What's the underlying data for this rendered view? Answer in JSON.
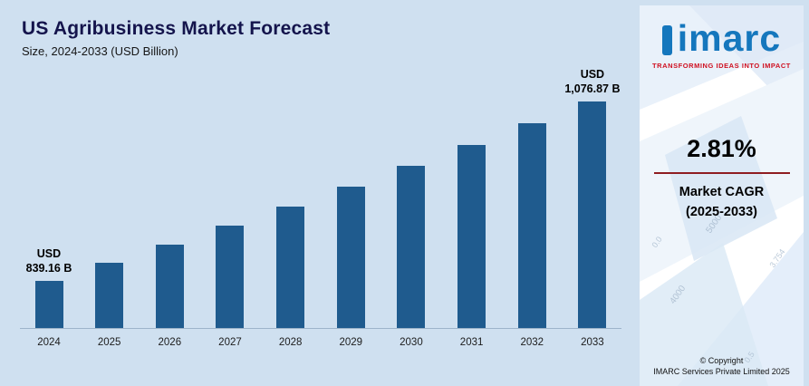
{
  "page": {
    "background_color": "#cfe0f0"
  },
  "chart": {
    "title": "US Agribusiness Market Forecast",
    "subtitle": "Size, 2024-2033 (USD Billion)"
  },
  "chart_data": {
    "type": "bar",
    "title": "US Agribusiness Market Forecast",
    "subtitle": "Size, 2024-2033 (USD Billion)",
    "unit": "USD Billion",
    "categories": [
      "2024",
      "2025",
      "2026",
      "2027",
      "2028",
      "2029",
      "2030",
      "2031",
      "2032",
      "2033"
    ],
    "values": [
      839.16,
      862.74,
      886.98,
      911.91,
      937.53,
      963.88,
      990.96,
      1018.81,
      1047.44,
      1076.87
    ],
    "value_labels_visible": {
      "0": [
        "USD",
        "839.16 B"
      ],
      "9": [
        "USD",
        "1,076.87 B"
      ]
    },
    "bar_color": "#1f5b8e",
    "axis_color": "#9db4ca",
    "ylim": [
      777,
      1080
    ],
    "grid": "off",
    "legend": "none"
  },
  "sidebar": {
    "logo": {
      "text": "imarc",
      "tagline": "TRANSFORMING IDEAS INTO IMPACT"
    },
    "cagr": {
      "value": "2.81%",
      "label_line1": "Market CAGR",
      "label_line2": "(2025-2033)"
    },
    "copyright": {
      "line1": "© Copyright",
      "line2": "IMARC Services Private Limited 2025"
    },
    "background_numbers": [
      "5000",
      "4000",
      "3.754",
      "0.0",
      "0.5"
    ]
  }
}
